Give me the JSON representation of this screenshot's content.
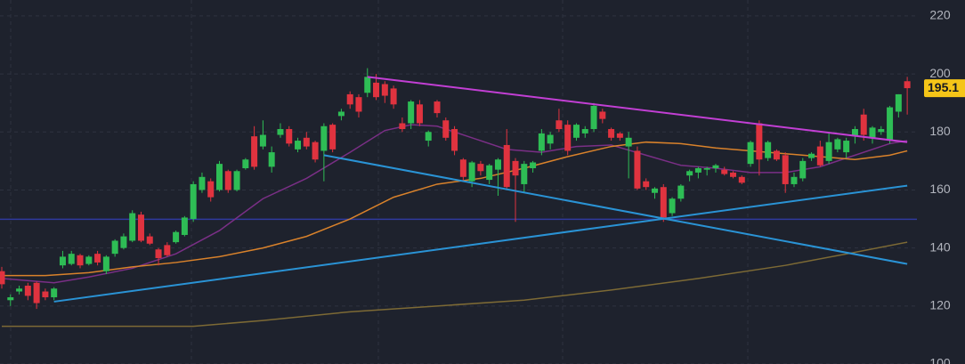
{
  "chart_data": {
    "type": "candlestick",
    "open": [
      132,
      122,
      125,
      127,
      128,
      125,
      123,
      134,
      134.5,
      137.5,
      134.5,
      138,
      132,
      138,
      140,
      142.5,
      151.5,
      144,
      139.5,
      141,
      142,
      144.5,
      150,
      160,
      163,
      160,
      166.5,
      160,
      167.5,
      178.5,
      175,
      168,
      179,
      181,
      174,
      178,
      176.5,
      173.5,
      182.5,
      185.5,
      193,
      192,
      193.5,
      197,
      196.5,
      195,
      183,
      183,
      189.5,
      177,
      190.5,
      184,
      181,
      170.5,
      163,
      169,
      163.5,
      167,
      175.5,
      170,
      162,
      167.5,
      173.5,
      176,
      184,
      182.5,
      178,
      179.5,
      181,
      187,
      181,
      179.5,
      175,
      173.5,
      163,
      159,
      161,
      152,
      157,
      165,
      166,
      167,
      167.5,
      167,
      166,
      164.5,
      169,
      183,
      171,
      173.5,
      172,
      162,
      164,
      171,
      175,
      170,
      174,
      173,
      178.5,
      186,
      178,
      180,
      177,
      187,
      197.5
    ],
    "high": [
      133.5,
      124,
      127,
      128,
      128.5,
      126,
      126.5,
      139,
      139,
      138,
      137.5,
      139,
      137.5,
      143,
      145,
      153,
      152.5,
      145,
      140,
      142,
      146,
      151,
      163,
      166,
      164,
      170,
      167,
      167,
      171,
      182,
      184,
      175,
      183,
      182,
      178,
      180,
      177,
      183,
      183,
      188,
      194,
      193,
      202,
      200,
      197.5,
      196,
      185,
      191,
      191,
      180.5,
      191,
      185,
      182,
      171,
      170,
      170,
      169,
      171,
      181,
      171,
      170,
      170,
      181,
      180,
      188,
      184,
      183,
      182,
      190,
      188,
      181.5,
      180,
      180,
      175,
      164,
      161,
      162,
      157.5,
      162,
      167,
      168,
      168,
      169,
      168,
      166.5,
      165,
      177,
      184,
      177,
      174,
      173,
      166,
      171,
      173,
      177,
      180,
      178,
      178,
      182,
      188,
      182,
      182,
      189,
      193,
      199
    ],
    "low": [
      126,
      120,
      124,
      122,
      119,
      122,
      122,
      133,
      134,
      133,
      134,
      134,
      131,
      137,
      139.5,
      142,
      142,
      141,
      134,
      137,
      141.5,
      144,
      149,
      159,
      156,
      159.5,
      159,
      159.5,
      167,
      167,
      174,
      166,
      178,
      175,
      173,
      174,
      169.5,
      163,
      173,
      184,
      188,
      185,
      192,
      191,
      190,
      188,
      180,
      181,
      182,
      175,
      185,
      177,
      172,
      163,
      161,
      165,
      162,
      158,
      160,
      149,
      159,
      166,
      172,
      174,
      180,
      172,
      177,
      178,
      180,
      183,
      177,
      177,
      164,
      160,
      160,
      157,
      149,
      151,
      156,
      163,
      164,
      165,
      166,
      165,
      164,
      162,
      168,
      165,
      170,
      170,
      159,
      161,
      163,
      170,
      168,
      169,
      173,
      171,
      176,
      177,
      176,
      179,
      176,
      185,
      186
    ],
    "close": [
      127.5,
      123,
      126,
      123.5,
      121,
      123,
      126,
      137,
      138,
      134,
      137,
      135,
      137,
      142.5,
      144,
      152,
      142.5,
      141.5,
      136.5,
      137.5,
      145.5,
      150.5,
      162,
      164.5,
      157.5,
      169,
      160,
      166.5,
      170.5,
      168,
      179,
      173,
      181,
      176,
      177,
      175,
      170.5,
      182,
      174,
      187,
      189.5,
      187,
      199,
      192,
      192.5,
      189.5,
      181,
      190.5,
      183,
      180,
      186.5,
      178,
      173.5,
      164.5,
      169.5,
      166.5,
      168.5,
      170.5,
      161,
      165,
      169,
      169.5,
      179.5,
      179,
      181,
      173.5,
      182.5,
      181,
      189,
      184.5,
      178,
      178,
      178,
      160.5,
      161,
      160.5,
      150.5,
      157,
      161.5,
      166.5,
      167.5,
      167.5,
      168.5,
      165.5,
      164.5,
      162.5,
      176.5,
      170.5,
      176.5,
      170.5,
      162,
      164.5,
      170,
      172.5,
      168.5,
      176.5,
      177.5,
      177,
      181,
      179,
      181.5,
      181,
      188.5,
      193,
      195.1
    ],
    "up_color": "#2ebd55",
    "down_color": "#e0333f",
    "ylim": [
      100,
      225.5
    ],
    "yticks": [
      100,
      120,
      140,
      160,
      180,
      200,
      220
    ],
    "grid": true,
    "overlays": [
      {
        "color": "#7a2f86",
        "x": [
          0,
          6,
          10,
          15,
          20,
          25,
          30,
          35,
          40,
          44,
          47,
          50,
          54,
          58,
          62,
          66,
          70,
          74,
          78,
          82,
          86,
          90,
          94,
          98,
          102,
          104
        ],
        "values": [
          129.5,
          128,
          130,
          133,
          138,
          146,
          157,
          164,
          173,
          180.5,
          182.5,
          182,
          178,
          174,
          173,
          175,
          175.5,
          172,
          168.5,
          167.5,
          166,
          166,
          168,
          172,
          176,
          177
        ]
      },
      {
        "color": "#d9822b",
        "x": [
          0,
          5,
          10,
          15,
          20,
          25,
          30,
          35,
          40,
          45,
          50,
          55,
          60,
          65,
          70,
          74,
          78,
          82,
          86,
          90,
          94,
          98,
          102,
          104
        ],
        "values": [
          130.5,
          130.5,
          131.5,
          133.5,
          135,
          137,
          140,
          144,
          150,
          157.5,
          162,
          164,
          167.5,
          171.5,
          175,
          176.5,
          176,
          174.5,
          173.5,
          172.5,
          171.5,
          170.5,
          172,
          173.5
        ]
      },
      {
        "color": "#7d6a35",
        "x": [
          0,
          22,
          30,
          40,
          50,
          60,
          70,
          80,
          90,
          98,
          104
        ],
        "values": [
          113,
          113,
          115,
          118,
          120,
          122,
          125.5,
          129.5,
          134,
          138.5,
          142
        ]
      }
    ],
    "trendlines": [
      {
        "color": "#c23fd4",
        "x": [
          42,
          104
        ],
        "values": [
          199,
          176.5
        ]
      },
      {
        "color": "#2a93d5",
        "x": [
          6,
          104
        ],
        "values": [
          121.5,
          161.5
        ]
      },
      {
        "color": "#2a93d5",
        "x": [
          37,
          104
        ],
        "values": [
          172,
          134.5
        ]
      }
    ],
    "hline": {
      "value": 149.9,
      "color": "#2f3a9e"
    },
    "last_price": 195.1,
    "last_price_color": "#f5c518"
  }
}
